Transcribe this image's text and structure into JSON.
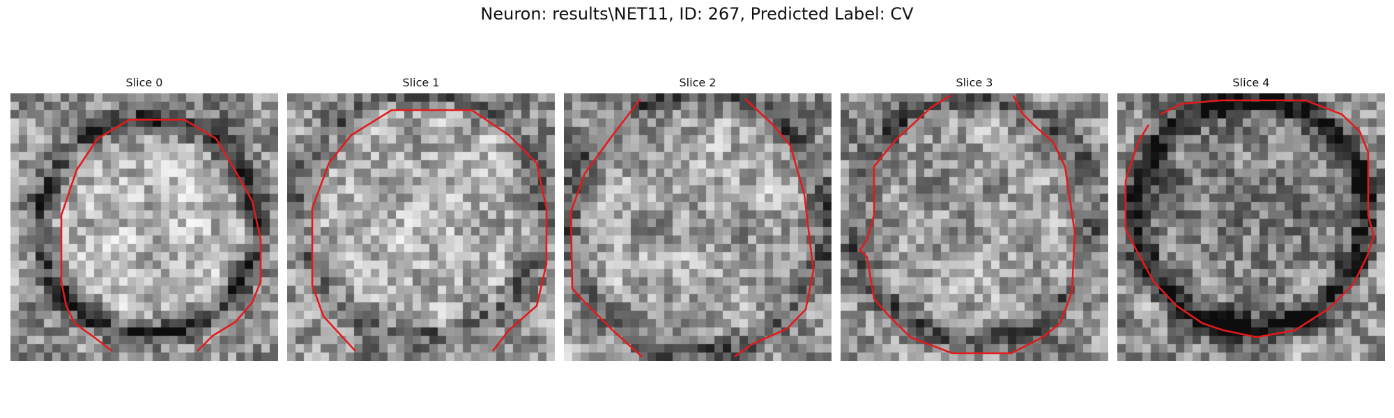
{
  "figure": {
    "title": "Neuron: results\\NET11, ID: 267, Predicted Label: CV"
  },
  "panels": [
    {
      "label": "Slice 0"
    },
    {
      "label": "Slice 1"
    },
    {
      "label": "Slice 2"
    },
    {
      "label": "Slice 3"
    },
    {
      "label": "Slice 4"
    }
  ],
  "colors": {
    "contour": "#e41a1c",
    "background": "#ffffff"
  }
}
